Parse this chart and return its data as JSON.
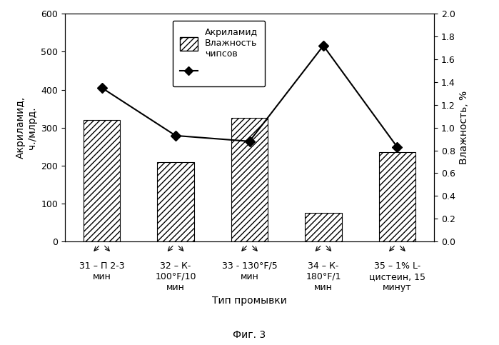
{
  "categories": [
    "31 – П 2-3\nмин",
    "32 – К-\n100°F/10\nмин",
    "33 - 130°F/5\nмин",
    "34 – К-\n180°F/1\nмин",
    "35 – 1% L-\nцистеин, 15\nминут"
  ],
  "acrylamide_values": [
    320,
    210,
    325,
    75,
    235
  ],
  "moisture_values": [
    1.35,
    0.93,
    0.88,
    1.72,
    0.83
  ],
  "bar_hatch": "////",
  "line_color": "#000000",
  "marker": "D",
  "marker_size": 7,
  "ylim_left": [
    0,
    600
  ],
  "ylim_right": [
    0,
    2.0
  ],
  "yticks_left": [
    0,
    100,
    200,
    300,
    400,
    500,
    600
  ],
  "yticks_right": [
    0,
    0.2,
    0.4,
    0.6,
    0.8,
    1.0,
    1.2,
    1.4,
    1.6,
    1.8,
    2.0
  ],
  "ylabel_left": "Акриламид,\nч./млрд.",
  "ylabel_right": "Влажность, %",
  "xlabel": "Тип промывки",
  "legend_bar_label": "Акриламид\nВлажность\nчипсов",
  "legend_line_label": "",
  "fig_caption": "Фиг. 3",
  "background_color": "#ffffff",
  "fontsize_ticks": 9,
  "fontsize_labels": 10,
  "fontsize_legend": 9,
  "fontsize_caption": 10,
  "bar_width": 0.5
}
